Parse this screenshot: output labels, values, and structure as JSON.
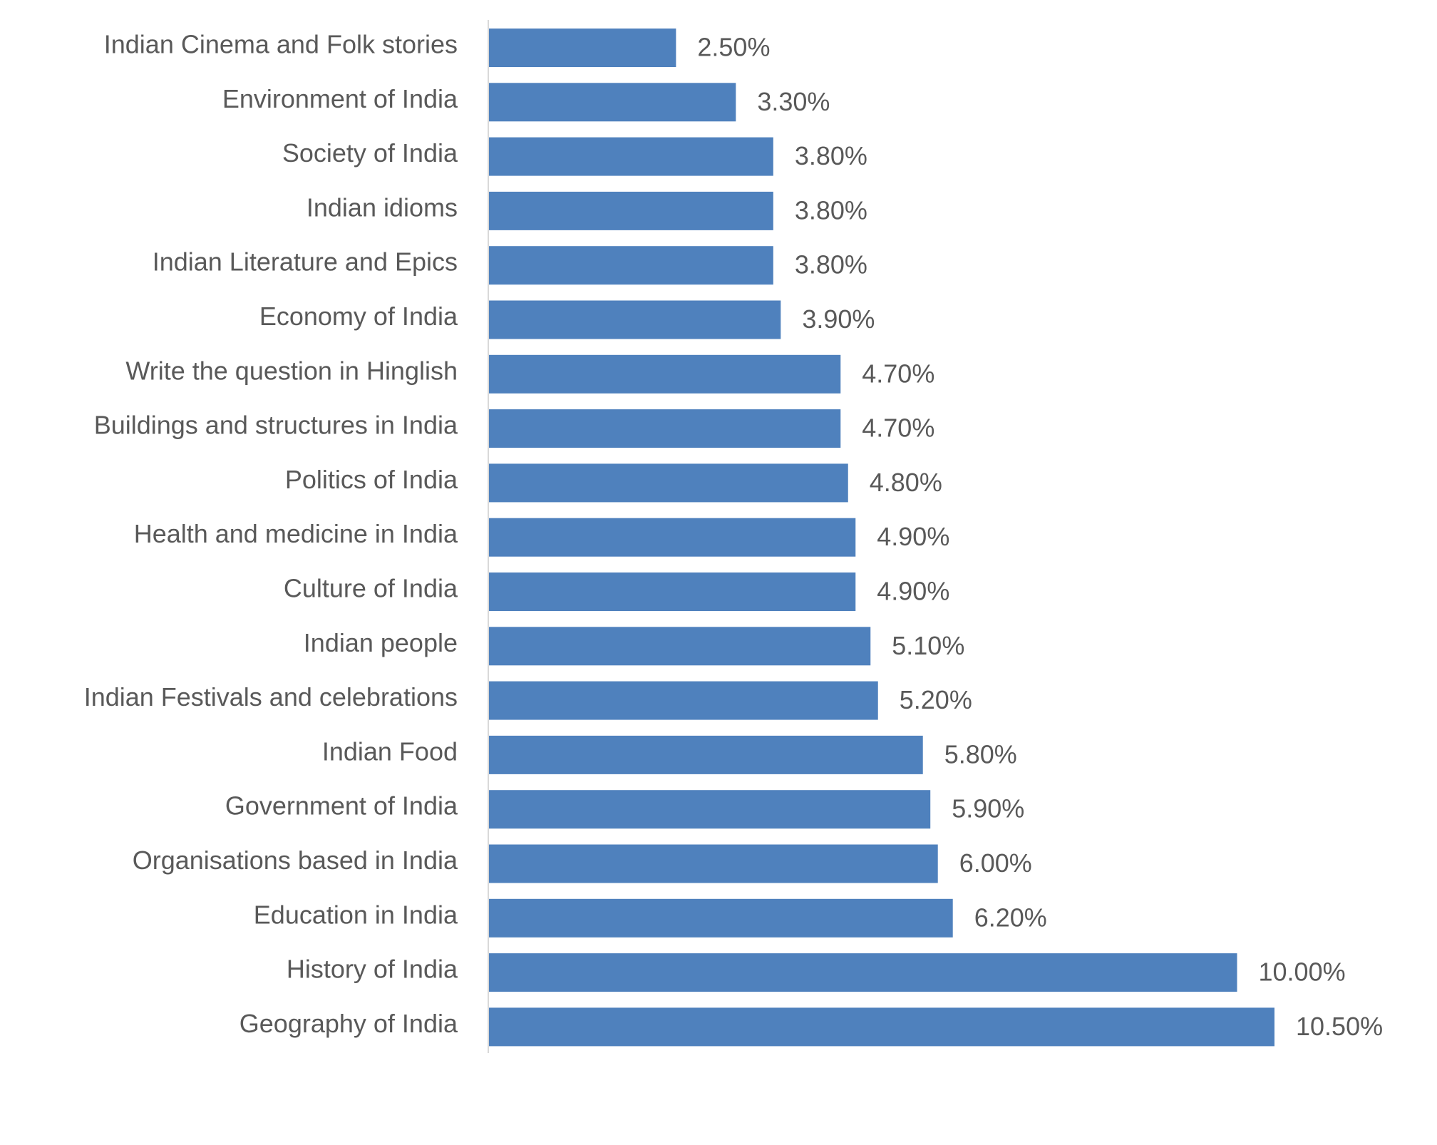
{
  "chart_data": {
    "type": "bar",
    "orientation": "horizontal",
    "color": "#4f81bd",
    "categories": [
      "Indian Cinema and Folk stories",
      "Environment of India",
      "Society of India",
      "Indian idioms",
      "Indian Literature and Epics",
      "Economy of India",
      "Write the question in Hinglish",
      "Buildings and structures in India",
      "Politics of India",
      "Health and medicine in India",
      "Culture of India",
      "Indian people",
      "Indian Festivals and celebrations",
      "Indian Food",
      "Government of India",
      "Organisations based in India",
      "Education in India",
      "History of India",
      "Geography of India"
    ],
    "values": [
      2.5,
      3.3,
      3.8,
      3.8,
      3.8,
      3.9,
      4.7,
      4.7,
      4.8,
      4.9,
      4.9,
      5.1,
      5.2,
      5.8,
      5.9,
      6.0,
      6.2,
      10.0,
      10.5
    ],
    "value_labels": [
      "2.50%",
      "3.30%",
      "3.80%",
      "3.80%",
      "3.80%",
      "3.90%",
      "4.70%",
      "4.70%",
      "4.80%",
      "4.90%",
      "4.90%",
      "5.10%",
      "5.20%",
      "5.80%",
      "5.90%",
      "6.00%",
      "6.20%",
      "10.00%",
      "10.50%"
    ]
  }
}
